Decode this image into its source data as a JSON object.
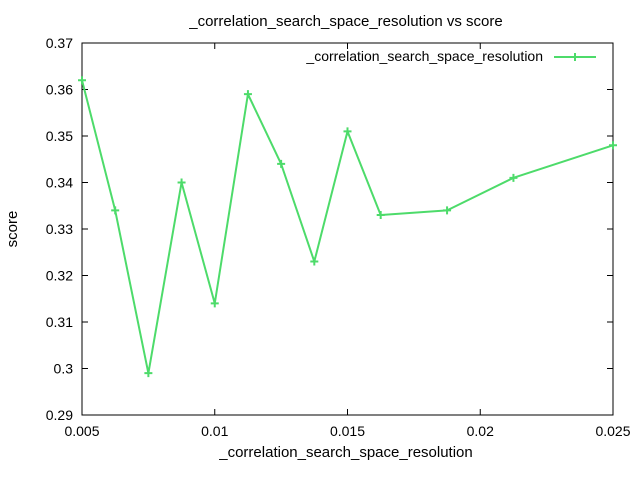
{
  "chart_data": {
    "type": "line",
    "title": "_correlation_search_space_resolution vs score",
    "xlabel": "_correlation_search_space_resolution",
    "ylabel": "score",
    "xlim": [
      0.005,
      0.025
    ],
    "ylim": [
      0.29,
      0.37
    ],
    "xticks": [
      0.005,
      0.01,
      0.015,
      0.02,
      0.025
    ],
    "xtick_labels": [
      "0.005",
      "0.01",
      "0.015",
      "0.02",
      "0.025"
    ],
    "yticks": [
      0.29,
      0.3,
      0.31,
      0.32,
      0.33,
      0.34,
      0.35,
      0.36,
      0.37
    ],
    "ytick_labels": [
      "0.29",
      "0.3",
      "0.31",
      "0.32",
      "0.33",
      "0.34",
      "0.35",
      "0.36",
      "0.37"
    ],
    "grid": false,
    "legend_position": "top-right",
    "series": [
      {
        "name": "_correlation_search_space_resolution",
        "color": "#4ddb6a",
        "marker": "plus",
        "x": [
          0.005,
          0.00625,
          0.0075,
          0.00875,
          0.01,
          0.01125,
          0.0125,
          0.01375,
          0.015,
          0.01625,
          0.01875,
          0.02125,
          0.025
        ],
        "y": [
          0.362,
          0.334,
          0.299,
          0.34,
          0.314,
          0.359,
          0.344,
          0.323,
          0.351,
          0.333,
          0.334,
          0.341,
          0.348
        ]
      }
    ]
  }
}
